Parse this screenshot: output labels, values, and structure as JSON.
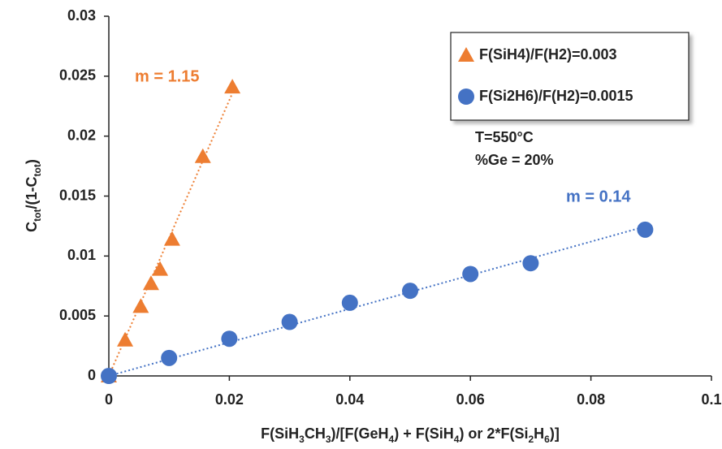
{
  "chart_data": {
    "type": "scatter",
    "xlabel_parts": [
      {
        "text": "F(SiH",
        "sub": false
      },
      {
        "text": "3",
        "sub": true
      },
      {
        "text": "CH",
        "sub": false
      },
      {
        "text": "3",
        "sub": true
      },
      {
        "text": ")/[F(GeH",
        "sub": false
      },
      {
        "text": "4",
        "sub": true
      },
      {
        "text": ") + F(SiH",
        "sub": false
      },
      {
        "text": "4",
        "sub": true
      },
      {
        "text": ") or 2*F(Si",
        "sub": false
      },
      {
        "text": "2",
        "sub": true
      },
      {
        "text": "H",
        "sub": false
      },
      {
        "text": "6",
        "sub": true
      },
      {
        "text": ")]",
        "sub": false
      }
    ],
    "ylabel_parts": [
      {
        "text": "C",
        "sub": false
      },
      {
        "text": "tot",
        "sub": true
      },
      {
        "text": "/(1-C",
        "sub": false
      },
      {
        "text": "tot",
        "sub": true
      },
      {
        "text": ")",
        "sub": false
      }
    ],
    "series": [
      {
        "name": "F(SiH4)/F(H2)=0.003",
        "color": "#ED7D31",
        "marker": "triangle",
        "x": [
          0,
          0.0027,
          0.0053,
          0.007,
          0.0085,
          0.0105,
          0.0156,
          0.0205
        ],
        "values": [
          0,
          0.003,
          0.0058,
          0.0077,
          0.0089,
          0.0114,
          0.0183,
          0.0241
        ],
        "trendline": {
          "slope": 1.15,
          "label": "m = 1.15"
        }
      },
      {
        "name": "F(Si2H6)/F(H2)=0.0015",
        "color": "#4472C4",
        "marker": "circle",
        "x": [
          0,
          0.01,
          0.02,
          0.03,
          0.04,
          0.05,
          0.06,
          0.07,
          0.089
        ],
        "values": [
          0,
          0.0015,
          0.0031,
          0.0045,
          0.0061,
          0.0071,
          0.0085,
          0.0094,
          0.0122
        ],
        "trendline": {
          "slope": 0.14,
          "label": "m = 0.14"
        }
      }
    ],
    "annotations": [
      "T=550°C",
      "%Ge = 20%"
    ],
    "xlim": [
      0,
      0.1
    ],
    "xticks": [
      0,
      0.02,
      0.04,
      0.06,
      0.08,
      0.1
    ],
    "ylim": [
      0,
      0.03
    ],
    "yticks": [
      0,
      0.005,
      0.01,
      0.015,
      0.02,
      0.025,
      0.03
    ],
    "grid": false,
    "legend": "upper right"
  }
}
